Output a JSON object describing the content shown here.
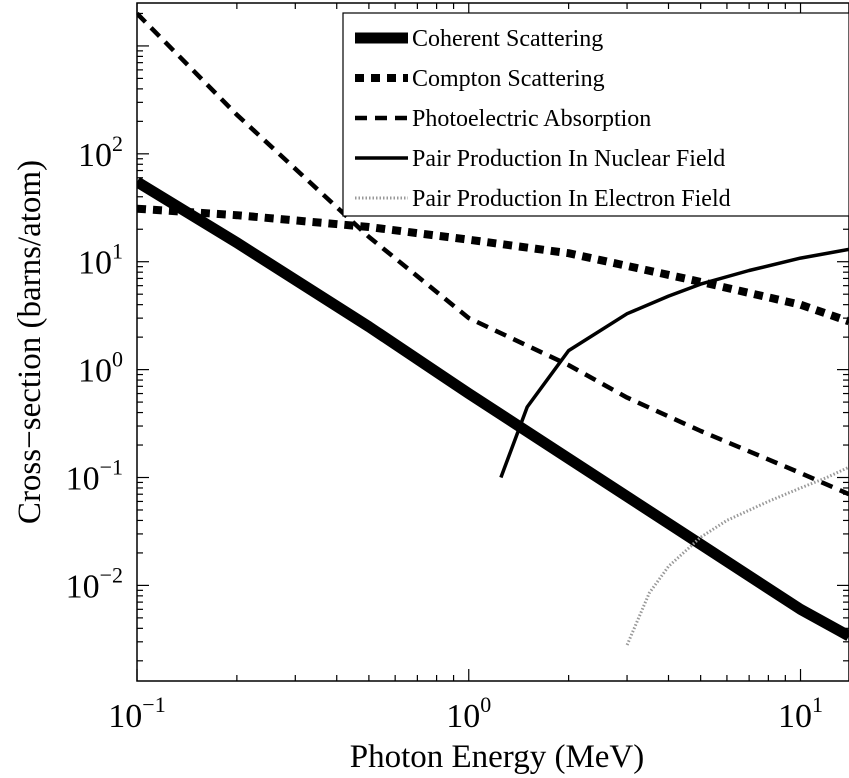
{
  "chart_data": {
    "type": "line",
    "xlabel": "Photon Energy (MeV)",
    "ylabel": "Cross−section (barns/atom)",
    "x_scale": "log",
    "y_scale": "log",
    "xlim": [
      0.1,
      14
    ],
    "ylim": [
      0.0013,
      2500
    ],
    "grid": false,
    "legend_position": "top-right",
    "x_ticks": [
      {
        "value": 0.1,
        "base": "10",
        "exp": "−1"
      },
      {
        "value": 1,
        "base": "10",
        "exp": "0"
      },
      {
        "value": 10,
        "base": "10",
        "exp": "1"
      }
    ],
    "y_ticks": [
      {
        "value": 0.01,
        "base": "10",
        "exp": "−2"
      },
      {
        "value": 0.1,
        "base": "10",
        "exp": "−1"
      },
      {
        "value": 1,
        "base": "10",
        "exp": "0"
      },
      {
        "value": 10,
        "base": "10",
        "exp": "1"
      },
      {
        "value": 100,
        "base": "10",
        "exp": "2"
      }
    ],
    "series": [
      {
        "name": "Coherent Scattering",
        "style": "thick-solid",
        "color": "#000000",
        "x": [
          0.1,
          0.2,
          0.5,
          1,
          2,
          5,
          10,
          14
        ],
        "y": [
          55,
          15,
          2.5,
          0.6,
          0.15,
          0.024,
          0.006,
          0.0034
        ]
      },
      {
        "name": "Compton Scattering",
        "style": "thick-dotted",
        "color": "#000000",
        "x": [
          0.1,
          0.2,
          0.5,
          1,
          2,
          5,
          10,
          14
        ],
        "y": [
          31,
          27,
          21,
          16,
          12,
          6.5,
          4,
          2.8
        ]
      },
      {
        "name": "Photoelectric Absorption",
        "style": "dashed",
        "color": "#000000",
        "x": [
          0.1,
          0.2,
          0.5,
          1,
          2,
          3,
          5,
          10,
          14
        ],
        "y": [
          2000,
          230,
          17,
          3,
          1.1,
          0.55,
          0.27,
          0.11,
          0.07
        ]
      },
      {
        "name": "Pair Production In Nuclear Field",
        "style": "solid",
        "color": "#000000",
        "x": [
          1.25,
          1.5,
          2,
          3,
          4,
          5,
          7,
          10,
          14
        ],
        "y": [
          0.1,
          0.45,
          1.5,
          3.3,
          4.8,
          6.2,
          8.3,
          10.8,
          13
        ]
      },
      {
        "name": "Pair Production In Electron Field",
        "style": "dotted-thin",
        "color": "#999999",
        "x": [
          3,
          3.5,
          4,
          5,
          6,
          8,
          10,
          12,
          14
        ],
        "y": [
          0.0028,
          0.0085,
          0.015,
          0.028,
          0.04,
          0.06,
          0.08,
          0.1,
          0.125
        ]
      }
    ]
  }
}
